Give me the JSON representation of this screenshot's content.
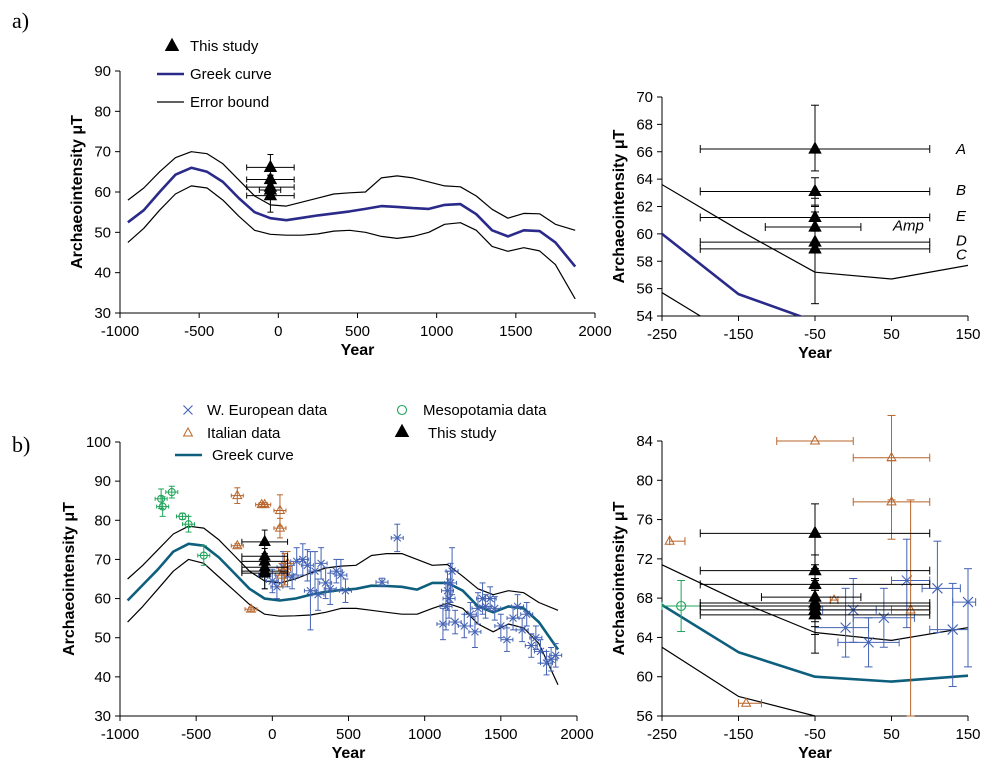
{
  "panel_labels": {
    "a": "a)",
    "b": "b)"
  },
  "chart_data": [
    {
      "id": "a-main",
      "type": "line",
      "xlabel": "Year",
      "ylabel": "Archaeointensity μT",
      "xlim": [
        -1000,
        2000
      ],
      "ylim": [
        30,
        90
      ],
      "xticks": [
        -1000,
        -500,
        0,
        500,
        1000,
        1500,
        2000
      ],
      "yticks": [
        30,
        40,
        50,
        60,
        70,
        80,
        90
      ],
      "legend": [
        "This study",
        "Greek curve",
        "Error bound"
      ],
      "legend_position": "top-left",
      "curve_x": [
        -950,
        -850,
        -750,
        -650,
        -550,
        -450,
        -350,
        -250,
        -150,
        -50,
        50,
        150,
        250,
        350,
        450,
        550,
        650,
        750,
        850,
        950,
        1050,
        1150,
        1250,
        1350,
        1450,
        1550,
        1650,
        1750,
        1875
      ],
      "greek_curve": [
        52.5,
        55.5,
        60,
        64.3,
        66,
        65,
        62.5,
        58.5,
        55,
        53.5,
        53,
        53.6,
        54.2,
        54.7,
        55.2,
        55.8,
        56.5,
        56.3,
        56,
        55.8,
        56.8,
        57,
        54.5,
        50.5,
        49,
        50.5,
        50.3,
        47.5,
        41.5
      ],
      "upper_bound": [
        58,
        61,
        65,
        68.5,
        70,
        69.5,
        67,
        63,
        59,
        56.8,
        56.5,
        57.5,
        58.5,
        59.5,
        59.8,
        60,
        63.5,
        64,
        63.5,
        62.5,
        61.5,
        61.3,
        59,
        55.7,
        53.5,
        54.7,
        54.6,
        52,
        50.5
      ],
      "lower_bound": [
        47.5,
        51,
        55.5,
        59.5,
        61.5,
        61,
        58,
        54,
        50.5,
        49.5,
        49.3,
        49.3,
        49.6,
        50.3,
        50.5,
        50,
        49,
        48.5,
        49,
        50,
        52,
        52.4,
        50.5,
        46.5,
        45.3,
        46.2,
        45.4,
        42,
        33.5
      ],
      "this_study": {
        "x": [
          -50,
          -50,
          -50,
          -50,
          -50
        ],
        "y": [
          66.1,
          63.1,
          61.2,
          60.5,
          59.1
        ],
        "xerr_low": [
          -200,
          -200,
          -200,
          -120,
          -200
        ],
        "xerr_high": [
          100,
          100,
          100,
          15,
          100
        ],
        "yerr": [
          [
            64.2,
            69.3
          ],
          [
            62.0,
            64.0
          ],
          [
            60.0,
            62.3
          ],
          [
            59.0,
            61.2
          ],
          [
            55.0,
            62.0
          ]
        ]
      }
    },
    {
      "id": "a-zoom",
      "type": "line",
      "xlabel": "Year",
      "ylabel": "Archaeointensity μT",
      "xlim": [
        -250,
        150
      ],
      "ylim": [
        54,
        70
      ],
      "xticks": [
        -250,
        -150,
        -50,
        50,
        150
      ],
      "yticks": [
        54,
        56,
        58,
        60,
        62,
        64,
        66,
        68,
        70
      ],
      "annotations": [
        {
          "text": "A",
          "y": 66.2
        },
        {
          "text": "B",
          "y": 63.2
        },
        {
          "text": "E",
          "y": 61.3
        },
        {
          "text": "Amp",
          "y": 60.6
        },
        {
          "text": "D",
          "y": 59.5
        },
        {
          "text": "C",
          "y": 58.5
        }
      ],
      "greek_curve": {
        "x": [
          -250,
          -150,
          -50
        ],
        "y": [
          60,
          55.6,
          53.6
        ]
      },
      "upper_bound": {
        "x": [
          -250,
          -150,
          -50,
          50,
          150
        ],
        "y": [
          63.6,
          60.3,
          57.2,
          56.7,
          57.7
        ]
      },
      "lower_bound": {
        "x": [
          -250,
          -200
        ],
        "y": [
          55.7,
          54
        ]
      },
      "this_study": {
        "x": [
          -50,
          -50,
          -50,
          -50,
          -50,
          -50
        ],
        "y": [
          66.2,
          63.1,
          61.2,
          60.5,
          59.4,
          58.9
        ],
        "xerr_low": [
          -200,
          -200,
          -200,
          -115,
          -200,
          -200
        ],
        "xerr_high": [
          100,
          100,
          100,
          10,
          100,
          100
        ],
        "yerr": [
          [
            64.6,
            69.4
          ],
          [
            62.0,
            64.1
          ],
          [
            60.3,
            62.1
          ],
          [
            59.4,
            61.6
          ],
          [
            58.6,
            60.2
          ],
          [
            54.9,
            62.6
          ]
        ]
      }
    },
    {
      "id": "b-main",
      "type": "scatter",
      "xlabel": "Year",
      "ylabel": "Archaeointensity μT",
      "xlim": [
        -1000,
        2000
      ],
      "ylim": [
        30,
        100
      ],
      "xticks": [
        -1000,
        -500,
        0,
        500,
        1000,
        1500,
        2000
      ],
      "yticks": [
        30,
        40,
        50,
        60,
        70,
        80,
        90,
        100
      ],
      "legend": [
        "W. European data",
        "Mesopotamia data",
        "Italian data",
        "This study",
        "Greek curve"
      ],
      "legend_position": "top",
      "curve_x": [
        -950,
        -850,
        -750,
        -650,
        -550,
        -450,
        -350,
        -250,
        -150,
        -50,
        50,
        150,
        250,
        350,
        450,
        550,
        650,
        750,
        850,
        950,
        1050,
        1150,
        1250,
        1350,
        1450,
        1550,
        1650,
        1750,
        1875
      ],
      "greek_curve": [
        59.5,
        63.5,
        67.5,
        72,
        74,
        73.5,
        70.5,
        66.5,
        62.5,
        60,
        59.5,
        60,
        61,
        61.7,
        62.2,
        62.5,
        63.3,
        63.2,
        63,
        62.3,
        64,
        64,
        62,
        58,
        56.5,
        58,
        57.5,
        54,
        47
      ],
      "upper_bound": [
        65,
        68.5,
        72.5,
        76.5,
        78.5,
        78,
        75,
        71,
        67,
        64.5,
        64,
        65,
        66.5,
        67.8,
        68.3,
        68.5,
        71,
        71.5,
        71.5,
        70,
        68.5,
        68.7,
        65.7,
        62.5,
        61,
        62,
        61.5,
        59,
        57
      ],
      "lower_bound": [
        54,
        58,
        62.5,
        67,
        70,
        69,
        65.5,
        62,
        58.5,
        56,
        55.5,
        55.6,
        55.8,
        56.5,
        57.5,
        57.5,
        57,
        56.5,
        56,
        56,
        57.5,
        58.8,
        57.5,
        53.5,
        51.5,
        53.5,
        52.5,
        48.5,
        38
      ],
      "w_european": {
        "x": [
          -50,
          0,
          30,
          70,
          100,
          130,
          160,
          200,
          230,
          250,
          280,
          300,
          320,
          350,
          380,
          420,
          450,
          480,
          720,
          820,
          1120,
          1140,
          1150,
          1160,
          1170,
          1180,
          1200,
          1260,
          1300,
          1330,
          1350,
          1380,
          1400,
          1430,
          1460,
          1500,
          1540,
          1580,
          1610,
          1640,
          1670,
          1700,
          1730,
          1760,
          1800,
          1830,
          1860
        ],
        "y": [
          66,
          64.5,
          63,
          68,
          66,
          65.5,
          69.5,
          70,
          68.5,
          62,
          67,
          61,
          69,
          64,
          62.5,
          67,
          66,
          62,
          64.2,
          75.5,
          53.5,
          58,
          62,
          60,
          64,
          67,
          54,
          53,
          56,
          51.5,
          57.5,
          60,
          58,
          60,
          57.5,
          53,
          49.5,
          55,
          58,
          52,
          56,
          48,
          50,
          46.5,
          43.5,
          44.5,
          45.5
        ],
        "yerr": [
          3.5,
          3,
          3,
          4,
          3,
          3,
          3.5,
          4,
          4,
          10,
          5,
          4,
          4,
          4,
          4,
          3,
          4,
          3,
          1,
          3.5,
          4,
          6,
          5,
          5,
          5,
          6,
          3,
          3,
          3,
          4,
          4,
          4,
          3,
          3,
          3,
          3,
          3,
          3,
          3,
          3,
          3,
          3,
          3,
          3,
          3,
          3,
          3
        ]
      },
      "mesopotamia": {
        "x": [
          -730,
          -720,
          -660,
          -590,
          -550,
          -450
        ],
        "y": [
          85.5,
          83.5,
          87.2,
          81,
          79,
          71
        ],
        "yerr": [
          2.5,
          2.5,
          1.5,
          0.8,
          2,
          2.5
        ]
      },
      "italian": {
        "x": [
          -230,
          -230,
          -140,
          -70,
          -50,
          50,
          50,
          60,
          80,
          100
        ],
        "y": [
          86.3,
          73.5,
          57.3,
          84,
          84,
          78,
          82.5,
          66,
          67.5,
          69
        ],
        "yerr": [
          2,
          0.5,
          0.5,
          0.5,
          0.5,
          2.5,
          4,
          3,
          4,
          3
        ]
      },
      "this_study": {
        "x": [
          -50,
          -50,
          -50,
          -50,
          -50,
          -50
        ],
        "y": [
          74.5,
          70.8,
          69.5,
          68,
          67,
          66.5
        ],
        "yerr": [
          3,
          2,
          2,
          1.5,
          1.5,
          4
        ]
      }
    },
    {
      "id": "b-zoom",
      "type": "scatter",
      "xlabel": "Year",
      "ylabel": "Archaeointensity μT",
      "xlim": [
        -250,
        150
      ],
      "ylim": [
        56,
        84
      ],
      "xticks": [
        -250,
        -150,
        -50,
        50,
        150
      ],
      "yticks": [
        56,
        60,
        64,
        68,
        72,
        76,
        80,
        84
      ],
      "greek_curve": {
        "x": [
          -250,
          -150,
          -50,
          50,
          150
        ],
        "y": [
          67.3,
          62.5,
          60,
          59.5,
          60.1
        ]
      },
      "upper_bound": {
        "x": [
          -250,
          -150,
          -50,
          50,
          150
        ],
        "y": [
          71.4,
          67.7,
          64.5,
          63.7,
          65
        ]
      },
      "lower_bound": {
        "x": [
          -250,
          -150,
          -50,
          50
        ],
        "y": [
          63,
          58,
          56,
          55.3
        ]
      },
      "this_study": {
        "x": [
          -50,
          -50,
          -50,
          -50,
          -50,
          -50,
          -50,
          -50
        ],
        "y": [
          74.6,
          70.8,
          69.4,
          68.1,
          67.5,
          67.2,
          66.8,
          66.3
        ],
        "xerr_low": [
          -200,
          -200,
          -200,
          -120,
          -200,
          -200,
          -200,
          -200
        ],
        "xerr_high": [
          100,
          100,
          100,
          10,
          100,
          100,
          100,
          100
        ],
        "yerr": [
          [
            71.4,
            77.6
          ],
          [
            68.8,
            72.4
          ],
          [
            68.0,
            71.0
          ],
          [
            66.2,
            69.8
          ],
          [
            65.6,
            68.8
          ],
          [
            65.1,
            69.0
          ],
          [
            64.3,
            69.0
          ],
          [
            62.4,
            70.0
          ]
        ]
      },
      "mesopotamia": {
        "x": [
          -225
        ],
        "y": [
          67.2
        ],
        "xerr_low": [
          -250
        ],
        "xerr_high": [
          -200
        ],
        "yerr": [
          [
            64.6,
            69.8
          ]
        ]
      },
      "italian": {
        "x": [
          -240,
          -140,
          -50,
          50,
          50,
          -25,
          75
        ],
        "y": [
          73.8,
          57.3,
          84,
          82.3,
          77.8,
          67.8,
          66.8
        ],
        "xerr_low": [
          -240,
          -150,
          -100,
          0,
          0,
          -30,
          50
        ],
        "xerr_high": [
          -220,
          -120,
          0,
          100,
          100,
          -20,
          100
        ],
        "yerr": [
          [
            73.8,
            73.8
          ],
          [
            57.3,
            57.3
          ],
          [
            84,
            84
          ],
          [
            78,
            86.6
          ],
          [
            74,
            82
          ],
          [
            67.8,
            67.8
          ],
          [
            56,
            78
          ]
        ]
      },
      "w_european": {
        "x": [
          0,
          20,
          70,
          110,
          130,
          150,
          -10,
          40
        ],
        "y": [
          66.8,
          63.5,
          69.8,
          69,
          64.8,
          67.6,
          65,
          66
        ],
        "xerr_low": [
          -40,
          -20,
          50,
          90,
          100,
          130,
          -50,
          0
        ],
        "xerr_high": [
          30,
          60,
          100,
          140,
          150,
          160,
          20,
          80
        ],
        "yerr": [
          [
            63.5,
            70
          ],
          [
            61,
            66
          ],
          [
            65,
            74
          ],
          [
            64.5,
            73.8
          ],
          [
            59,
            69.5
          ],
          [
            61,
            71
          ],
          [
            62,
            69
          ],
          [
            63,
            69
          ]
        ]
      }
    }
  ]
}
